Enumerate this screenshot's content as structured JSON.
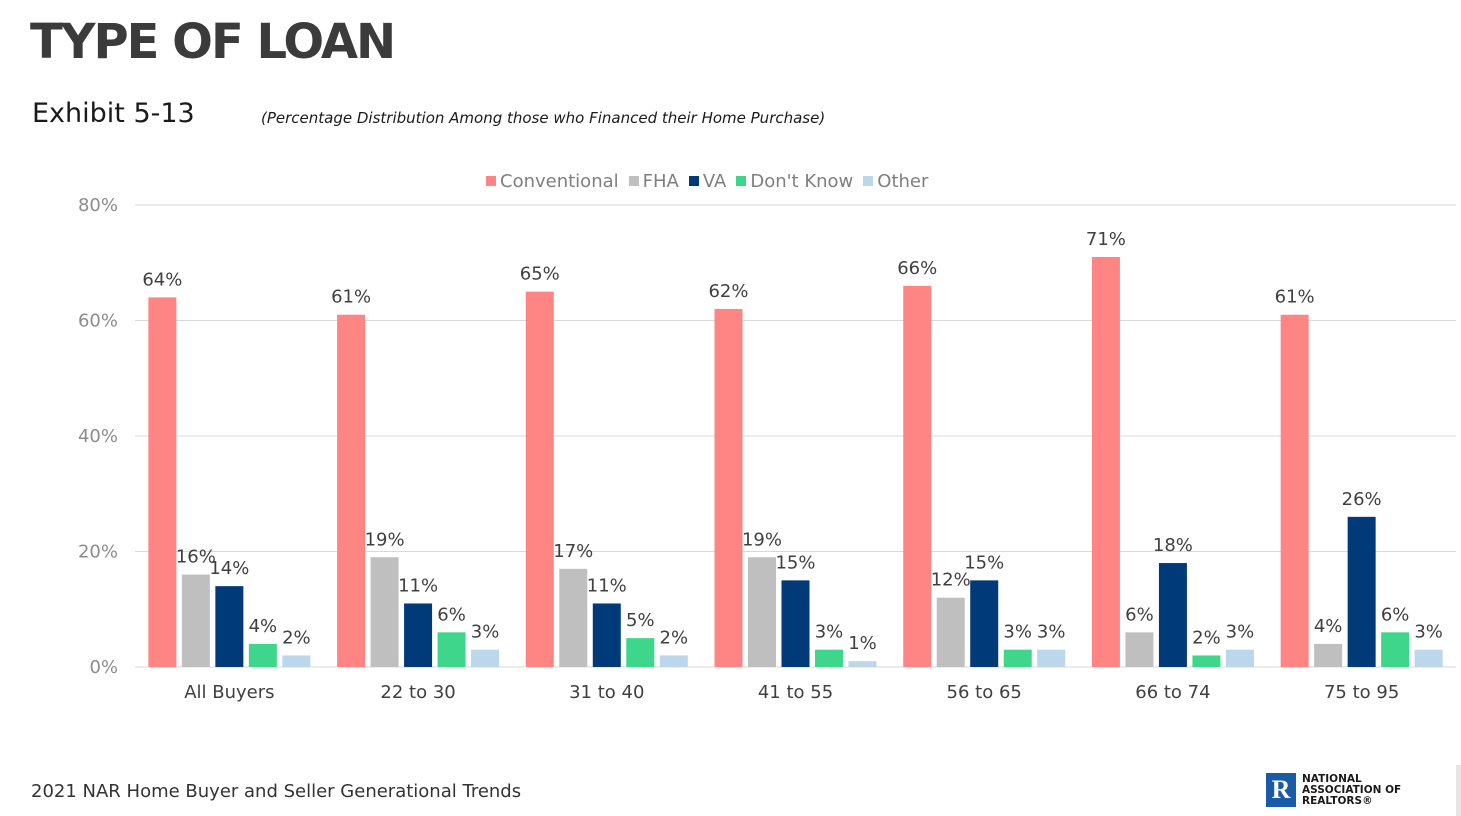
{
  "header": {
    "title": "TYPE OF LOAN",
    "exhibit": "Exhibit 5-13",
    "subtitle": "(Percentage Distribution Among those who Financed their Home Purchase)"
  },
  "footer": {
    "source": "2021 NAR Home Buyer and Seller Generational Trends",
    "logo_text": "NATIONAL\nASSOCIATION OF\nREALTORS®",
    "logo_letter": "R"
  },
  "colors": {
    "conventional": "#ff8585",
    "fha": "#bfbfbf",
    "va": "#003a78",
    "dont_know": "#3ed68a",
    "other": "#bcd6ec",
    "gridline": "#d9d9d9",
    "tick_text": "#8c8c8c",
    "label_text": "#404040"
  },
  "chart_data": {
    "type": "bar",
    "categories": [
      "All Buyers",
      "22 to 30",
      "31 to 40",
      "41 to 55",
      "56 to 65",
      "66 to 74",
      "75 to 95"
    ],
    "series": [
      {
        "name": "Conventional",
        "values": [
          64,
          61,
          65,
          62,
          66,
          71,
          61
        ],
        "labels": [
          "64%",
          "61%",
          "65%",
          "62%",
          "66%",
          "71%",
          "61%"
        ]
      },
      {
        "name": "FHA",
        "values": [
          16,
          19,
          17,
          19,
          12,
          6,
          4
        ],
        "labels": [
          "16%",
          "19%",
          "17%",
          "19%",
          "12%",
          "6%",
          "4%"
        ]
      },
      {
        "name": "VA",
        "values": [
          14,
          11,
          11,
          15,
          15,
          18,
          26
        ],
        "labels": [
          "14%",
          "11%",
          "11%",
          "15%",
          "15%",
          "18%",
          "26%"
        ]
      },
      {
        "name": "Don't Know",
        "values": [
          4,
          6,
          5,
          3,
          3,
          2,
          6
        ],
        "labels": [
          "4%",
          "6%",
          "5%",
          "3%",
          "3%",
          "2%",
          "6%"
        ]
      },
      {
        "name": "Other",
        "values": [
          2,
          3,
          2,
          1,
          3,
          3,
          3
        ],
        "labels": [
          "2%",
          "3%",
          "2%",
          "1%",
          "3%",
          "3%",
          "3%"
        ]
      }
    ],
    "ylim": [
      0,
      80
    ],
    "yticks": [
      0,
      20,
      40,
      60,
      80
    ],
    "ytick_labels": [
      "0%",
      "20%",
      "40%",
      "60%",
      "80%"
    ],
    "grid": true,
    "legend": "top-center"
  }
}
